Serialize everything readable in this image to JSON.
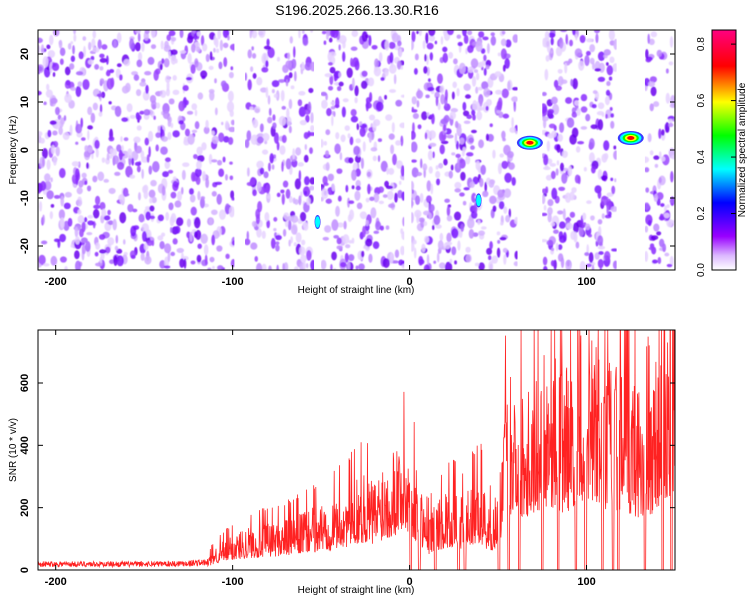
{
  "figure": {
    "title": "S196.2025.266.13.30.R16"
  },
  "chart_data": [
    {
      "type": "heatmap",
      "name": "spectrogram",
      "xlabel": "Height of straight line (km)",
      "ylabel": "Frequency (Hz)",
      "xlim": [
        -210,
        150
      ],
      "ylim": [
        -25,
        25
      ],
      "xticks": [
        -200,
        -100,
        0,
        100
      ],
      "yticks": [
        -20,
        -10,
        0,
        10,
        20
      ],
      "colorbar": {
        "label": "Normalized spectral amplitude",
        "range": [
          0,
          0.85
        ],
        "ticks": [
          0.0,
          0.2,
          0.4,
          0.6,
          0.8
        ],
        "tick_labels": [
          "0.0",
          "0.2",
          "0.4",
          "0.6",
          "0.8"
        ],
        "colors": [
          "#ffffff",
          "#9900ff",
          "#0000ff",
          "#00ffff",
          "#00ff00",
          "#ffff00",
          "#ff0000",
          "#ff0080"
        ]
      },
      "bright_peaks": [
        {
          "x": 68,
          "freq": 1.5,
          "amplitude": 0.75
        },
        {
          "x": 125,
          "freq": 2.5,
          "amplitude": 0.85
        },
        {
          "x": 39,
          "freq": -10.5,
          "amplitude": 0.25
        },
        {
          "x": -52,
          "freq": -15,
          "amplitude": 0.3
        }
      ],
      "gaps_x": [
        [
          -99,
          -93
        ],
        [
          -54,
          -50
        ],
        [
          -3,
          1
        ],
        [
          61,
          75
        ],
        [
          117,
          133
        ]
      ],
      "noise_amplitude_range": [
        0.0,
        0.15
      ]
    },
    {
      "type": "line",
      "name": "snr",
      "xlabel": "Height of straight line (km)",
      "ylabel": "SNR (10 * v/v)",
      "xlim": [
        -210,
        150
      ],
      "ylim": [
        0,
        770
      ],
      "xticks": [
        -200,
        -100,
        0,
        100
      ],
      "yticks": [
        0,
        200,
        400,
        600
      ],
      "color": "#ff2222",
      "series": [
        {
          "name": "SNR",
          "x": [
            -210,
            -180,
            -150,
            -130,
            -115,
            -110,
            -100,
            -90,
            -80,
            -70,
            -60,
            -50,
            -45,
            -40,
            -35,
            -30,
            -25,
            -20,
            -15,
            -10,
            -5,
            0,
            5,
            10,
            15,
            20,
            25,
            30,
            35,
            40,
            45,
            50,
            55,
            60,
            65,
            70,
            75,
            80,
            85,
            90,
            95,
            100,
            105,
            110,
            115,
            120,
            125,
            130,
            135,
            140,
            145,
            150
          ],
          "y": [
            20,
            20,
            20,
            22,
            25,
            60,
            90,
            110,
            120,
            130,
            150,
            170,
            180,
            200,
            210,
            240,
            250,
            220,
            280,
            300,
            350,
            320,
            250,
            140,
            170,
            200,
            210,
            190,
            220,
            250,
            160,
            200,
            500,
            520,
            480,
            500,
            570,
            580,
            520,
            540,
            610,
            620,
            580,
            530,
            540,
            520,
            500,
            480,
            440,
            580,
            620,
            600
          ]
        }
      ],
      "dropouts_x": [
        0.6,
        5.5,
        14.5,
        27.7,
        31.3,
        50.5,
        56,
        62,
        75,
        84,
        94,
        99.5,
        109,
        115,
        118,
        133,
        143,
        148
      ]
    }
  ]
}
